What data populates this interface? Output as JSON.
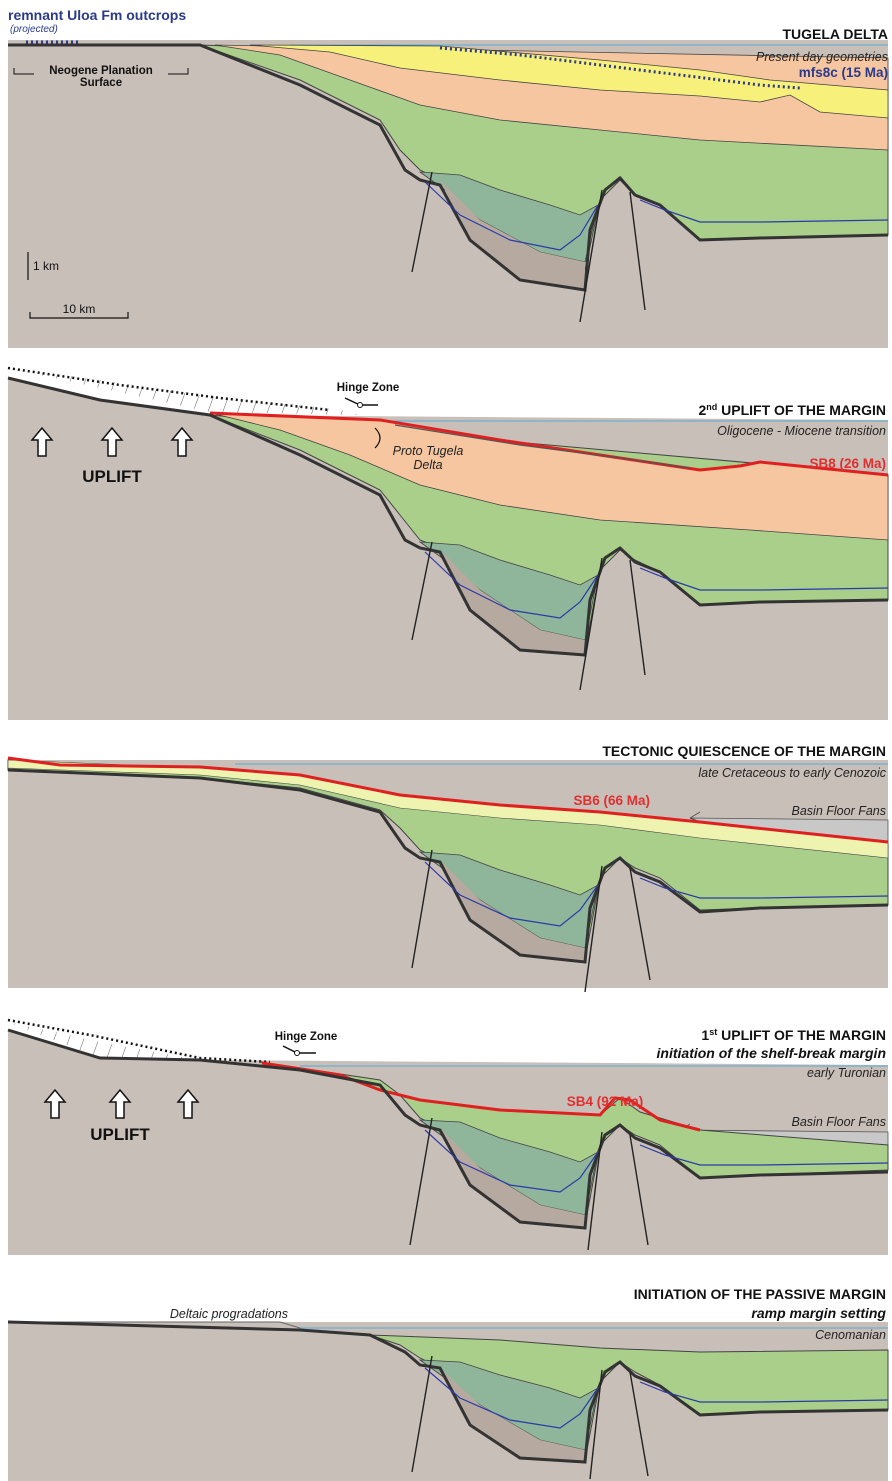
{
  "header": {
    "outcrops_label": "remnant Uloa Fm outcrops",
    "outcrops_note": "(projected)",
    "planation_label_1": "Neogene Planation",
    "planation_label_2": "Surface",
    "scale_vertical": "1 km",
    "scale_horizontal": "10 km"
  },
  "panels": [
    {
      "title": "TUGELA DELTA",
      "subtitle": "Present day geometries",
      "surface_label": "mfs8c (15 Ma)"
    },
    {
      "title_prefix": "2",
      "title_sup": "nd",
      "title_rest": " UPLIFT OF THE MARGIN",
      "subtitle": "Oligocene - Miocene transition",
      "surface_label": "SB8 (26 Ma)",
      "hinge_label": "Hinge Zone",
      "uplift_label": "UPLIFT",
      "delta_label_1": "Proto Tugela",
      "delta_label_2": "Delta"
    },
    {
      "title": "TECTONIC QUIESCENCE OF THE MARGIN",
      "subtitle": "late Cretaceous to early Cenozoic",
      "surface_label": "SB6 (66 Ma)",
      "fans_label": "Basin Floor Fans"
    },
    {
      "title_prefix": "1",
      "title_sup": "st",
      "title_rest": " UPLIFT OF THE MARGIN",
      "subtitle_bold": "initiation of the shelf-break margin",
      "subtitle": "early Turonian",
      "surface_label": "SB4 (92 Ma)",
      "hinge_label": "Hinge Zone",
      "uplift_label": "UPLIFT",
      "fans_label": "Basin Floor Fans"
    },
    {
      "title": "INITIATION OF THE PASSIVE MARGIN",
      "subtitle_bold": "ramp margin setting",
      "subtitle": "Cenomanian",
      "progradation_label": "Deltaic progradations"
    }
  ],
  "colors": {
    "basement": "#c9bfb9",
    "rift_fill": "#b6aaa0",
    "green_dark": "#8fb59a",
    "green_mid": "#a9cf8a",
    "green_light": "#c9e3a0",
    "pale_yellow": "#eef3b0",
    "orange": "#f5c6a0",
    "yellow": "#f7f07a",
    "red_surface": "#e02020",
    "blue_line": "#2b3aa8",
    "sea_line": "#5aa8d8"
  }
}
